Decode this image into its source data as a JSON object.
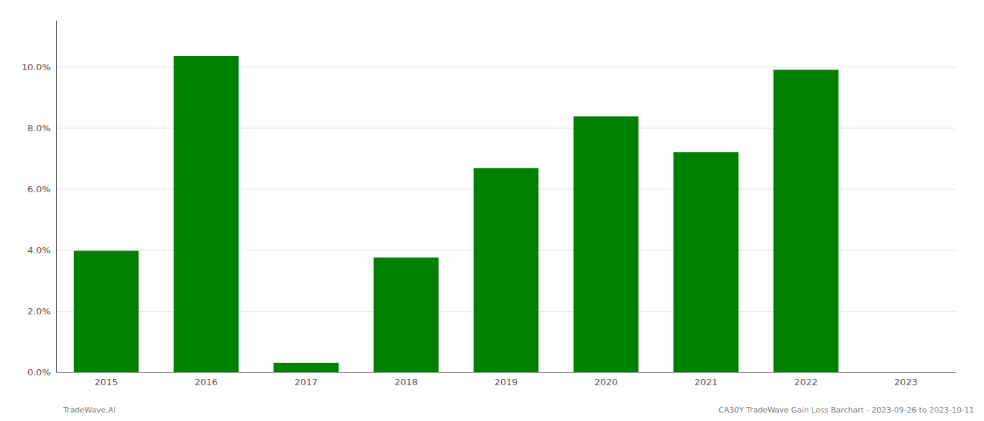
{
  "chart_data": {
    "type": "bar",
    "categories": [
      "2015",
      "2016",
      "2017",
      "2018",
      "2019",
      "2020",
      "2021",
      "2022",
      "2023"
    ],
    "values": [
      0.0397,
      0.1035,
      0.003,
      0.0375,
      0.0668,
      0.0838,
      0.072,
      0.099,
      null
    ],
    "color": "#008000",
    "ylim": [
      0,
      0.115
    ],
    "yticks": [
      {
        "value": 0.0,
        "label": "0.0%"
      },
      {
        "value": 0.02,
        "label": "2.0%"
      },
      {
        "value": 0.04,
        "label": "4.0%"
      },
      {
        "value": 0.06,
        "label": "6.0%"
      },
      {
        "value": 0.08,
        "label": "8.0%"
      },
      {
        "value": 0.1,
        "label": "10.0%"
      }
    ],
    "grid": true,
    "annotations": [
      "TradeWave.AI",
      "CA30Y TradeWave Gain Loss Barchart - 2023-09-26 to 2023-10-11"
    ]
  }
}
